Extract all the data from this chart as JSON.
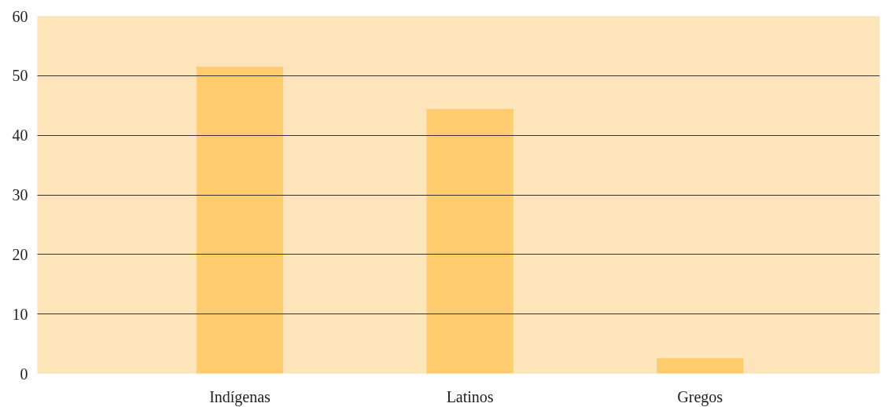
{
  "chart_data": {
    "type": "bar",
    "categories": [
      "Indígenas",
      "Latinos",
      "Gregos"
    ],
    "values": [
      51.5,
      44.4,
      2.6
    ],
    "color": "#fecb6e",
    "ylim": [
      0,
      60
    ],
    "yticks": [
      0,
      10,
      20,
      30,
      40,
      50,
      60
    ],
    "grid": "y"
  }
}
